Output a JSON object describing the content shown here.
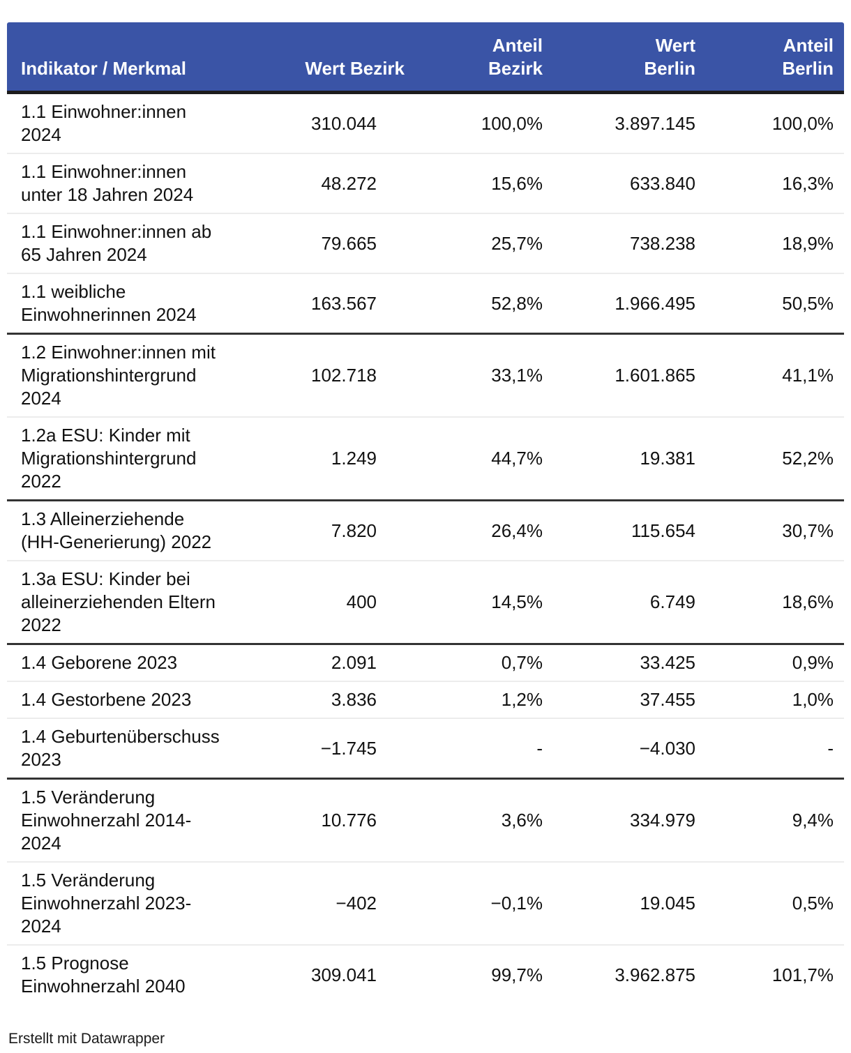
{
  "table": {
    "columns": [
      {
        "id": "indikator",
        "label": "Indikator / Merkmal"
      },
      {
        "id": "wert_bezirk",
        "label": "Wert Bezirk"
      },
      {
        "id": "anteil_bezirk",
        "label": "Anteil\nBezirk"
      },
      {
        "id": "wert_berlin",
        "label": "Wert\nBerlin"
      },
      {
        "id": "anteil_berlin",
        "label": "Anteil\nBerlin"
      }
    ],
    "rows": [
      {
        "sep": "none",
        "cells": [
          "1.1 Einwohner:innen 2024",
          "310.044",
          "100,0%",
          "3.897.145",
          "100,0%"
        ]
      },
      {
        "sep": "light",
        "cells": [
          "1.1 Einwohner:innen unter 18 Jahren 2024",
          "48.272",
          "15,6%",
          "633.840",
          "16,3%"
        ]
      },
      {
        "sep": "light",
        "cells": [
          "1.1 Einwohner:innen ab 65 Jahren 2024",
          "79.665",
          "25,7%",
          "738.238",
          "18,9%"
        ]
      },
      {
        "sep": "light",
        "cells": [
          "1.1 weibliche Einwohnerinnen 2024",
          "163.567",
          "52,8%",
          "1.966.495",
          "50,5%"
        ]
      },
      {
        "sep": "dark",
        "cells": [
          "1.2 Einwohner:innen mit Migrationshintergrund 2024",
          "102.718",
          "33,1%",
          "1.601.865",
          "41,1%"
        ]
      },
      {
        "sep": "light",
        "cells": [
          "1.2a ESU: Kinder mit Migrationshintergrund 2022",
          "1.249",
          "44,7%",
          "19.381",
          "52,2%"
        ]
      },
      {
        "sep": "dark",
        "cells": [
          "1.3 Alleinerziehende (HH-Generierung) 2022",
          "7.820",
          "26,4%",
          "115.654",
          "30,7%"
        ]
      },
      {
        "sep": "light",
        "cells": [
          "1.3a ESU: Kinder bei alleinerziehenden Eltern 2022",
          "400",
          "14,5%",
          "6.749",
          "18,6%"
        ]
      },
      {
        "sep": "dark",
        "cells": [
          "1.4 Geborene 2023",
          "2.091",
          "0,7%",
          "33.425",
          "0,9%"
        ]
      },
      {
        "sep": "light",
        "cells": [
          "1.4 Gestorbene 2023",
          "3.836",
          "1,2%",
          "37.455",
          "1,0%"
        ]
      },
      {
        "sep": "light",
        "cells": [
          "1.4 Geburtenüberschuss 2023",
          "−1.745",
          "-",
          "−4.030",
          "-"
        ]
      },
      {
        "sep": "dark",
        "cells": [
          "1.5 Veränderung Einwohnerzahl 2014-2024",
          "10.776",
          "3,6%",
          "334.979",
          "9,4%"
        ]
      },
      {
        "sep": "light",
        "cells": [
          "1.5 Veränderung Einwohnerzahl 2023-2024",
          "−402",
          "−0,1%",
          "19.045",
          "0,5%"
        ]
      },
      {
        "sep": "light",
        "cells": [
          "1.5 Prognose Einwohnerzahl 2040",
          "309.041",
          "99,7%",
          "3.962.875",
          "101,7%"
        ]
      }
    ]
  },
  "footer": {
    "credit": "Erstellt mit Datawrapper"
  },
  "colors": {
    "header_bg": "#3a54a6",
    "header_text": "#ffffff",
    "header_rule": "#1c1c1c",
    "group_rule": "#333333",
    "row_rule": "#ececec",
    "body_text": "#111111"
  },
  "chart_data": {
    "type": "table",
    "columns": [
      "Indikator / Merkmal",
      "Wert Bezirk",
      "Anteil Bezirk",
      "Wert Berlin",
      "Anteil Berlin"
    ],
    "rows": [
      [
        "1.1 Einwohner:innen 2024",
        "310.044",
        "100,0%",
        "3.897.145",
        "100,0%"
      ],
      [
        "1.1 Einwohner:innen unter 18 Jahren 2024",
        "48.272",
        "15,6%",
        "633.840",
        "16,3%"
      ],
      [
        "1.1 Einwohner:innen ab 65 Jahren 2024",
        "79.665",
        "25,7%",
        "738.238",
        "18,9%"
      ],
      [
        "1.1 weibliche Einwohnerinnen 2024",
        "163.567",
        "52,8%",
        "1.966.495",
        "50,5%"
      ],
      [
        "1.2 Einwohner:innen mit Migrationshintergrund 2024",
        "102.718",
        "33,1%",
        "1.601.865",
        "41,1%"
      ],
      [
        "1.2a ESU: Kinder mit Migrationshintergrund 2022",
        "1.249",
        "44,7%",
        "19.381",
        "52,2%"
      ],
      [
        "1.3 Alleinerziehende (HH-Generierung) 2022",
        "7.820",
        "26,4%",
        "115.654",
        "30,7%"
      ],
      [
        "1.3a ESU: Kinder bei alleinerziehenden Eltern 2022",
        "400",
        "14,5%",
        "6.749",
        "18,6%"
      ],
      [
        "1.4 Geborene 2023",
        "2.091",
        "0,7%",
        "33.425",
        "0,9%"
      ],
      [
        "1.4 Gestorbene 2023",
        "3.836",
        "1,2%",
        "37.455",
        "1,0%"
      ],
      [
        "1.4 Geburtenüberschuss 2023",
        "−1.745",
        "-",
        "−4.030",
        "-"
      ],
      [
        "1.5 Veränderung Einwohnerzahl 2014-2024",
        "10.776",
        "3,6%",
        "334.979",
        "9,4%"
      ],
      [
        "1.5 Veränderung Einwohnerzahl 2023-2024",
        "−402",
        "−0,1%",
        "19.045",
        "0,5%"
      ],
      [
        "1.5 Prognose Einwohnerzahl 2040",
        "309.041",
        "99,7%",
        "3.962.875",
        "101,7%"
      ]
    ],
    "grid": "horizontal-rules-only",
    "legend_position": "none",
    "notes": "Dark rules separate indicator groups 1.1 / 1.2 / 1.3 / 1.4 / 1.5; light rules separate rows within a group."
  }
}
